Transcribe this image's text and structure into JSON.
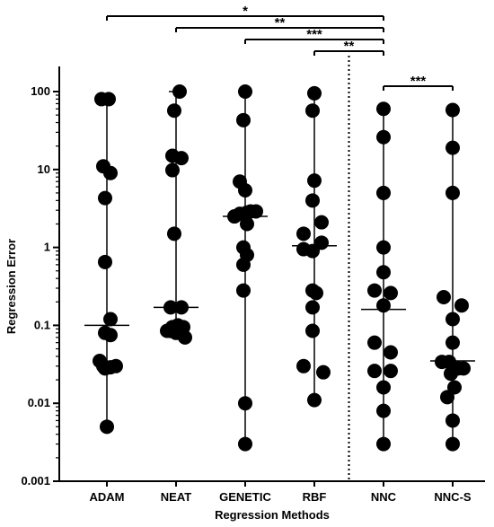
{
  "chart_data": {
    "type": "scatter",
    "title": "",
    "xlabel": "Regression Methods",
    "ylabel": "Regression Error",
    "yscale": "log",
    "ylim": [
      0.001,
      100
    ],
    "yticks": [
      {
        "value": 0.001,
        "label": "0.001"
      },
      {
        "value": 0.01,
        "label": "0.01"
      },
      {
        "value": 0.1,
        "label": "0.1"
      },
      {
        "value": 1,
        "label": "1"
      },
      {
        "value": 10,
        "label": "10"
      },
      {
        "value": 100,
        "label": "100"
      }
    ],
    "categories": [
      "ADAM",
      "NEAT",
      "GENETIC",
      "RBF",
      "NNC",
      "NNC-S"
    ],
    "series": [
      {
        "category": "ADAM",
        "median": 0.1,
        "min": 0.005,
        "max": 80,
        "points": [
          [
            -0.15,
            80
          ],
          [
            0.05,
            80
          ],
          [
            -0.1,
            11
          ],
          [
            0.1,
            9
          ],
          [
            -0.05,
            4.3
          ],
          [
            -0.05,
            0.65
          ],
          [
            0.1,
            0.12
          ],
          [
            -0.05,
            0.08
          ],
          [
            0.1,
            0.075
          ],
          [
            -0.2,
            0.035
          ],
          [
            -0.05,
            0.028
          ],
          [
            0.1,
            0.029
          ],
          [
            0.25,
            0.03
          ],
          [
            -0.1,
            0.03
          ],
          [
            0,
            0.005
          ]
        ]
      },
      {
        "category": "NEAT",
        "median": 0.17,
        "min": 0.07,
        "max": 100,
        "points": [
          [
            0.1,
            100
          ],
          [
            -0.05,
            57
          ],
          [
            -0.1,
            15
          ],
          [
            0.15,
            14
          ],
          [
            -0.1,
            9.8
          ],
          [
            -0.05,
            1.5
          ],
          [
            -0.15,
            0.17
          ],
          [
            0.15,
            0.17
          ],
          [
            -0.25,
            0.085
          ],
          [
            -0.1,
            0.095
          ],
          [
            0.05,
            0.1
          ],
          [
            0.2,
            0.095
          ],
          [
            0,
            0.08
          ],
          [
            0.25,
            0.07
          ]
        ]
      },
      {
        "category": "GENETIC",
        "median": 2.5,
        "min": 0.003,
        "max": 100,
        "points": [
          [
            0,
            100
          ],
          [
            -0.05,
            43
          ],
          [
            -0.15,
            7
          ],
          [
            0,
            5.4
          ],
          [
            -0.3,
            2.5
          ],
          [
            -0.15,
            2.7
          ],
          [
            0.05,
            2.8
          ],
          [
            0.15,
            2.9
          ],
          [
            0.3,
            2.9
          ],
          [
            0.05,
            2
          ],
          [
            -0.05,
            1
          ],
          [
            0.05,
            0.8
          ],
          [
            -0.05,
            0.6
          ],
          [
            -0.05,
            0.28
          ],
          [
            0,
            0.01
          ],
          [
            0,
            0.003
          ]
        ]
      },
      {
        "category": "RBF",
        "median": 1.05,
        "min": 0.011,
        "max": 95,
        "points": [
          [
            0,
            95
          ],
          [
            -0.05,
            57
          ],
          [
            0,
            7.2
          ],
          [
            -0.05,
            4
          ],
          [
            0.2,
            2.1
          ],
          [
            -0.3,
            1.5
          ],
          [
            0.2,
            1.15
          ],
          [
            -0.3,
            0.95
          ],
          [
            -0.05,
            0.9
          ],
          [
            -0.05,
            0.28
          ],
          [
            0.05,
            0.26
          ],
          [
            -0.05,
            0.17
          ],
          [
            -0.05,
            0.085
          ],
          [
            -0.3,
            0.03
          ],
          [
            0.25,
            0.025
          ],
          [
            0,
            0.011
          ]
        ]
      },
      {
        "category": "NNC",
        "median": 0.16,
        "min": 0.003,
        "max": 60,
        "points": [
          [
            0,
            60
          ],
          [
            0,
            26
          ],
          [
            0,
            5
          ],
          [
            0,
            1
          ],
          [
            0,
            0.48
          ],
          [
            -0.25,
            0.28
          ],
          [
            0.2,
            0.26
          ],
          [
            0,
            0.18
          ],
          [
            -0.25,
            0.06
          ],
          [
            0.2,
            0.045
          ],
          [
            -0.25,
            0.026
          ],
          [
            0.2,
            0.026
          ],
          [
            0,
            0.016
          ],
          [
            0,
            0.008
          ],
          [
            0,
            0.003
          ]
        ]
      },
      {
        "category": "NNC-S",
        "median": 0.035,
        "min": 0.003,
        "max": 58,
        "points": [
          [
            0,
            58
          ],
          [
            0,
            19
          ],
          [
            0,
            5
          ],
          [
            -0.25,
            0.23
          ],
          [
            0.25,
            0.18
          ],
          [
            0,
            0.12
          ],
          [
            0,
            0.06
          ],
          [
            -0.3,
            0.034
          ],
          [
            -0.1,
            0.034
          ],
          [
            0.15,
            0.028
          ],
          [
            0.3,
            0.028
          ],
          [
            -0.05,
            0.024
          ],
          [
            0.05,
            0.016
          ],
          [
            -0.15,
            0.012
          ],
          [
            0,
            0.006
          ],
          [
            0,
            0.003
          ]
        ]
      }
    ],
    "significance": [
      {
        "from": "ADAM",
        "to": "NNC",
        "label": "*"
      },
      {
        "from": "NEAT",
        "to": "NNC",
        "label": "**"
      },
      {
        "from": "GENETIC",
        "to": "NNC",
        "label": "***"
      },
      {
        "from": "RBF",
        "to": "NNC",
        "label": "**"
      },
      {
        "from": "NNC",
        "to": "NNC-S",
        "label": "***"
      }
    ],
    "divider_between": [
      "RBF",
      "NNC"
    ],
    "grid": false,
    "legend": "none",
    "marker_color": "#000000"
  }
}
